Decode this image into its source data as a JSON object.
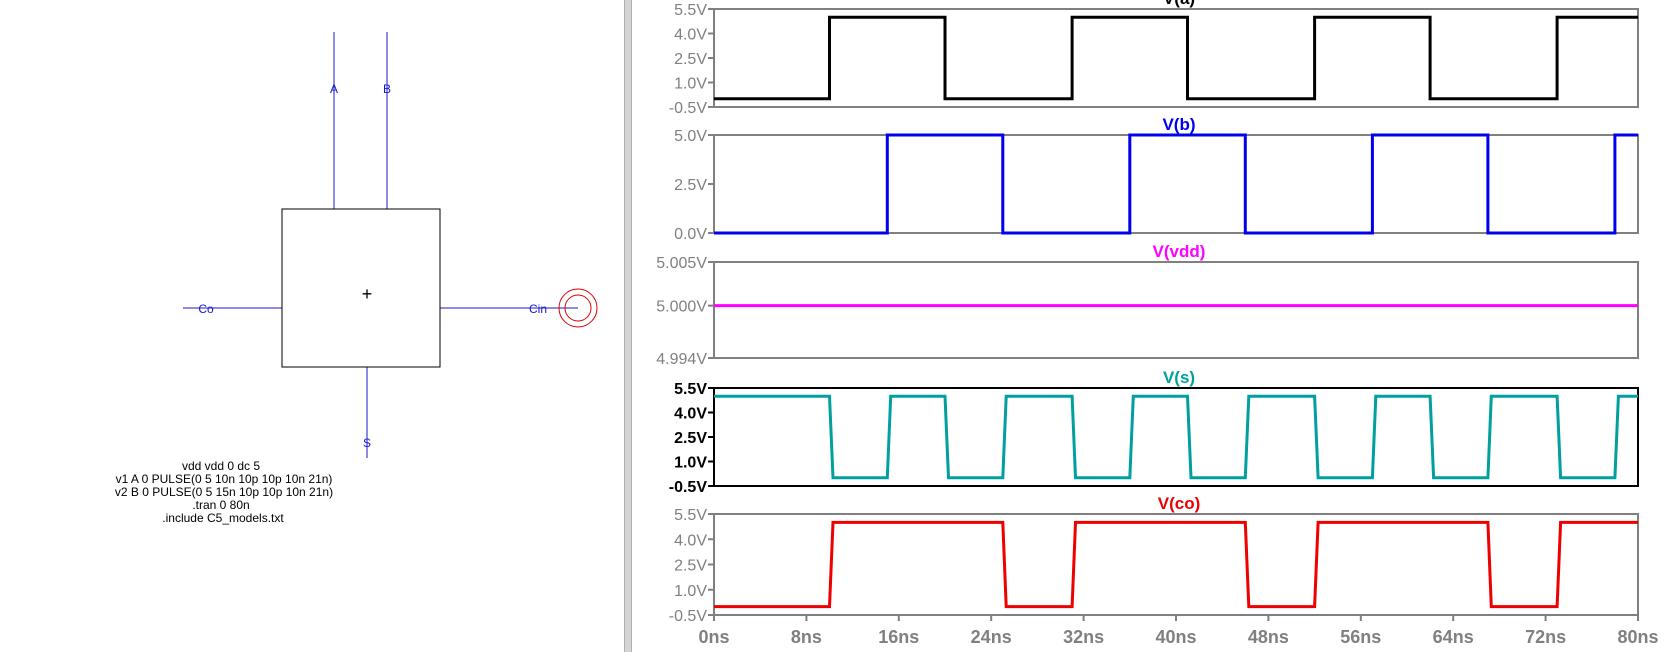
{
  "schematic": {
    "pins": {
      "a": "A",
      "b": "B",
      "co": "Co",
      "cin": "Cin",
      "s": "S"
    },
    "netlist": [
      "vdd vdd 0 dc 5",
      "v1 A 0 PULSE(0 5 10n 10p 10p 10n 21n)",
      "v2 B 0 PULSE(0 5 15n 10p 10p 10n 21n)",
      ".tran 0 80n",
      ".include C5_models.txt"
    ]
  },
  "colors": {
    "wire": "#1a1acc",
    "plot_a": "#000000",
    "plot_b": "#0000ee",
    "plot_vdd": "#ff00ff",
    "plot_s": "#00a0a0",
    "plot_co": "#ee0000",
    "axis": "#808080",
    "cursor": "#dd0000"
  },
  "x_axis": {
    "min": 0,
    "max": 80,
    "ticks": [
      0,
      8,
      16,
      24,
      32,
      40,
      48,
      56,
      64,
      72,
      80
    ],
    "tick_labels": [
      "0ns",
      "8ns",
      "16ns",
      "24ns",
      "32ns",
      "40ns",
      "48ns",
      "56ns",
      "64ns",
      "72ns",
      "80ns"
    ]
  },
  "chart_data": [
    {
      "type": "line",
      "title": "V(a)",
      "color": "#000000",
      "ylim": [
        -0.5,
        5.5
      ],
      "yticks": [
        5.5,
        4.0,
        2.5,
        1.0,
        -0.5
      ],
      "ytick_labels": [
        "5.5V",
        "4.0V",
        "2.5V",
        "1.0V",
        "-0.5V"
      ],
      "x": [
        0,
        10,
        10,
        20,
        20,
        31,
        31,
        41,
        41,
        52,
        52,
        62,
        62,
        73,
        73,
        80
      ],
      "y": [
        0,
        0,
        5,
        5,
        0,
        0,
        5,
        5,
        0,
        0,
        5,
        5,
        0,
        0,
        5,
        5
      ]
    },
    {
      "type": "line",
      "title": "V(b)",
      "color": "#0000ee",
      "ylim": [
        0,
        5
      ],
      "yticks": [
        5.0,
        2.5,
        0.0
      ],
      "ytick_labels": [
        "5.0V",
        "2.5V",
        "0.0V"
      ],
      "x": [
        0,
        15,
        15,
        25,
        25,
        36,
        36,
        46,
        46,
        57,
        57,
        67,
        67,
        78,
        78,
        80
      ],
      "y": [
        0,
        0,
        5,
        5,
        0,
        0,
        5,
        5,
        0,
        0,
        5,
        5,
        0,
        0,
        5,
        5
      ]
    },
    {
      "type": "line",
      "title": "V(vdd)",
      "color": "#ff00ff",
      "ylim": [
        4.994,
        5.005
      ],
      "yticks": [
        5.005,
        5.0,
        4.994
      ],
      "ytick_labels": [
        "5.005V",
        "5.000V",
        "4.994V"
      ],
      "x": [
        0,
        80
      ],
      "y": [
        5.0,
        5.0
      ]
    },
    {
      "type": "line",
      "title": "V(s)",
      "color": "#00a0a0",
      "ylim": [
        -0.5,
        5.5
      ],
      "yticks": [
        5.5,
        4.0,
        2.5,
        1.0,
        -0.5
      ],
      "ytick_labels": [
        "5.5V",
        "4.0V",
        "2.5V",
        "1.0V",
        "-0.5V"
      ],
      "x": [
        0,
        10,
        10.3,
        15,
        15.3,
        20,
        20.3,
        25,
        25.3,
        31,
        31.3,
        36,
        36.3,
        41,
        41.3,
        46,
        46.3,
        52,
        52.3,
        57,
        57.3,
        62,
        62.3,
        67,
        67.3,
        73,
        73.3,
        78,
        78.3,
        80
      ],
      "y": [
        5,
        5,
        0,
        0,
        5,
        5,
        0,
        0,
        5,
        5,
        0,
        0,
        5,
        5,
        0,
        0,
        5,
        5,
        0,
        0,
        5,
        5,
        0,
        0,
        5,
        5,
        0,
        0,
        5,
        5
      ]
    },
    {
      "type": "line",
      "title": "V(co)",
      "color": "#ee0000",
      "ylim": [
        -0.5,
        5.5
      ],
      "yticks": [
        5.5,
        4.0,
        2.5,
        1.0,
        -0.5
      ],
      "ytick_labels": [
        "5.5V",
        "4.0V",
        "2.5V",
        "1.0V",
        "-0.5V"
      ],
      "x": [
        0,
        10,
        10.3,
        25,
        25.3,
        31,
        31.3,
        46,
        46.3,
        52,
        52.3,
        67,
        67.3,
        73,
        73.3,
        80
      ],
      "y": [
        0,
        0,
        5,
        5,
        0,
        0,
        5,
        5,
        0,
        0,
        5,
        5,
        0,
        0,
        5,
        5
      ]
    }
  ]
}
